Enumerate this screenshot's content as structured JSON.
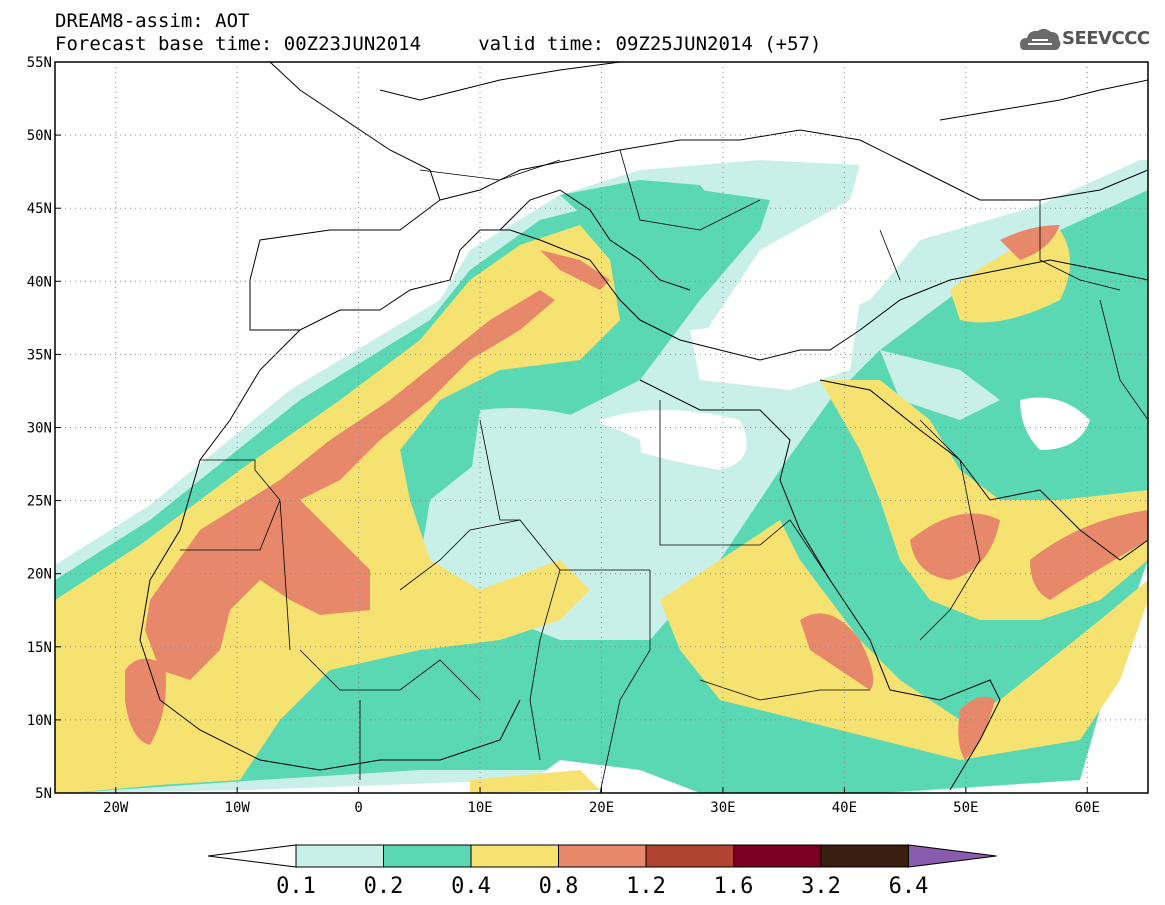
{
  "title_line1": "DREAM8-assim: AOT",
  "title_line2": "Forecast base time: 00Z23JUN2014     valid time: 09Z25JUN2014 (+57)",
  "logo_text": "SEEVCCC",
  "logo_icon": "cloud-logo-icon",
  "map": {
    "lon_range": [
      -25,
      65
    ],
    "lat_range": [
      5,
      55
    ],
    "lon_ticks": [
      {
        "value": -20,
        "label": "20W"
      },
      {
        "value": -10,
        "label": "10W"
      },
      {
        "value": 0,
        "label": "0"
      },
      {
        "value": 10,
        "label": "10E"
      },
      {
        "value": 20,
        "label": "20E"
      },
      {
        "value": 30,
        "label": "30E"
      },
      {
        "value": 40,
        "label": "40E"
      },
      {
        "value": 50,
        "label": "50E"
      },
      {
        "value": 60,
        "label": "60E"
      }
    ],
    "lat_ticks": [
      {
        "value": 55,
        "label": "55N"
      },
      {
        "value": 50,
        "label": "50N"
      },
      {
        "value": 45,
        "label": "45N"
      },
      {
        "value": 40,
        "label": "40N"
      },
      {
        "value": 35,
        "label": "35N"
      },
      {
        "value": 30,
        "label": "30N"
      },
      {
        "value": 25,
        "label": "25N"
      },
      {
        "value": 20,
        "label": "20N"
      },
      {
        "value": 15,
        "label": "15N"
      },
      {
        "value": 10,
        "label": "10N"
      },
      {
        "value": 5,
        "label": "5N"
      }
    ],
    "grid": "dotted"
  },
  "colorbar": {
    "colors": [
      "#c8f0e8",
      "#5ad8b4",
      "#f6e270",
      "#e8886a",
      "#b04430",
      "#7a0020",
      "#3a1e10"
    ],
    "under_color": "#ffffff",
    "over_color": "#8a5cb0",
    "labels": [
      "0.1",
      "0.2",
      "0.4",
      "0.8",
      "1.2",
      "1.6",
      "3.2",
      "6.4"
    ]
  }
}
